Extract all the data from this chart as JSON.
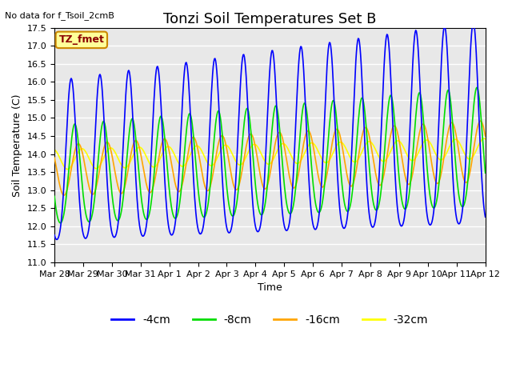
{
  "title": "Tonzi Soil Temperatures Set B",
  "xlabel": "Time",
  "ylabel": "Soil Temperature (C)",
  "note": "No data for f_Tsoil_2cmB",
  "legend_label": "TZ_fmet",
  "ylim": [
    11.0,
    17.5
  ],
  "yticks": [
    11.0,
    11.5,
    12.0,
    12.5,
    13.0,
    13.5,
    14.0,
    14.5,
    15.0,
    15.5,
    16.0,
    16.5,
    17.0,
    17.5
  ],
  "xtick_labels": [
    "Mar 28",
    "Mar 29",
    "Mar 30",
    "Mar 31",
    "Apr 1",
    "Apr 2",
    "Apr 3",
    "Apr 4",
    "Apr 5",
    "Apr 6",
    "Apr 7",
    "Apr 8",
    "Apr 9",
    "Apr 10",
    "Apr 11",
    "Apr 12"
  ],
  "line_colors": [
    "blue",
    "#00dd00",
    "orange",
    "yellow"
  ],
  "line_labels": [
    "-4cm",
    "-8cm",
    "-16cm",
    "-32cm"
  ],
  "bg_color": "#e8e8e8",
  "grid_color": "white",
  "title_fontsize": 13,
  "axis_fontsize": 9,
  "tick_fontsize": 8,
  "legend_fontsize": 10
}
